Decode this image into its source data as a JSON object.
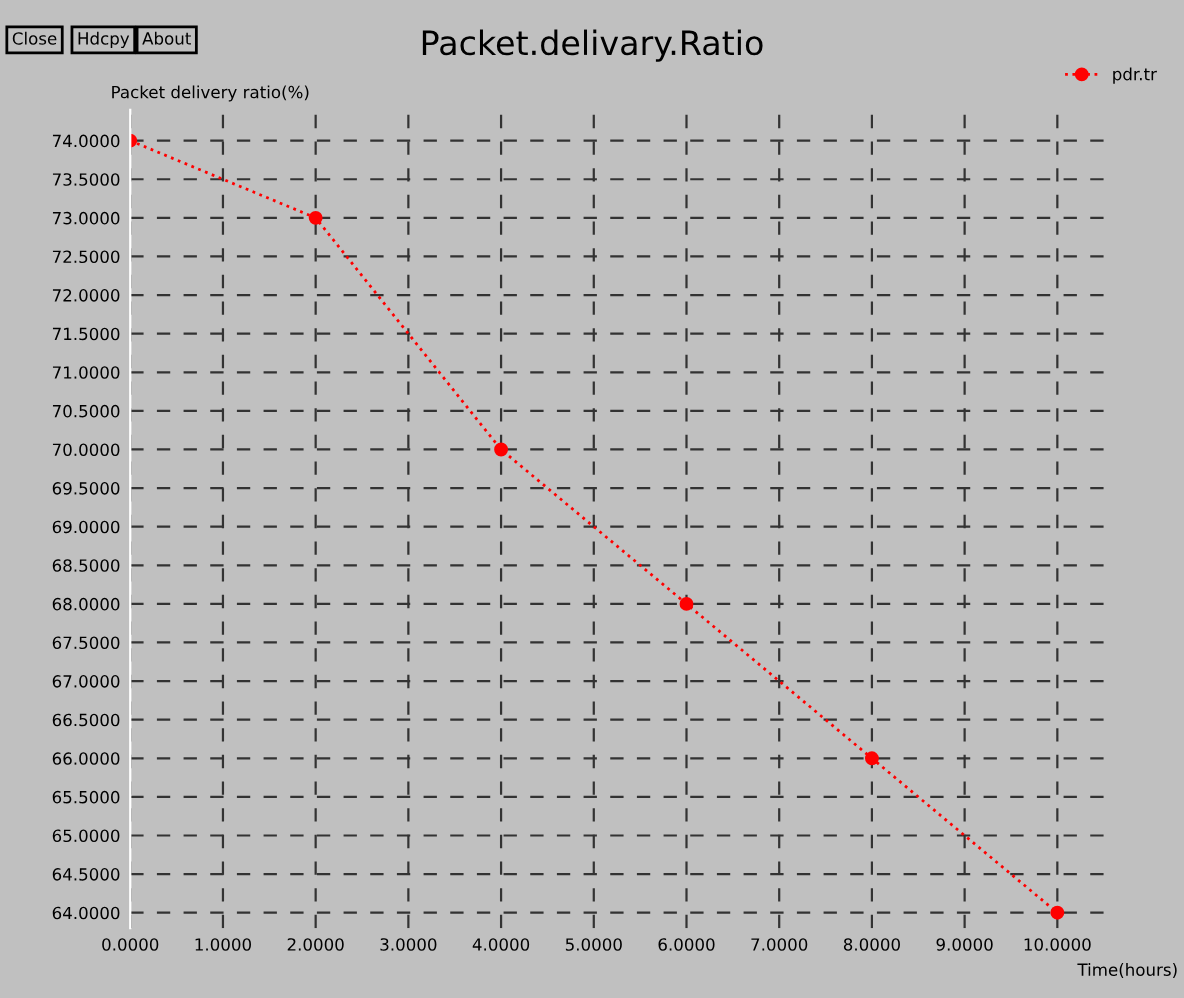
{
  "chart_data": {
    "type": "line",
    "title": "Packet.delivary.Ratio",
    "ylabel": "Packet delivery ratio(%)",
    "xlabel": "Time(hours)",
    "annotations": [
      "Close",
      "Hdcpy",
      "About"
    ],
    "x": [
      0,
      2,
      4,
      6,
      8,
      10
    ],
    "series": [
      {
        "name": "pdr.tr",
        "color": "#ff0000",
        "values": [
          74,
          73,
          70,
          68,
          66,
          64
        ]
      }
    ],
    "xlim": [
      0,
      10.6
    ],
    "ylim": [
      63.8,
      74.4
    ],
    "xticks": [
      {
        "value": 0,
        "label": "0.0000"
      },
      {
        "value": 1,
        "label": "1.0000"
      },
      {
        "value": 2,
        "label": "2.0000"
      },
      {
        "value": 3,
        "label": "3.0000"
      },
      {
        "value": 4,
        "label": "4.0000"
      },
      {
        "value": 5,
        "label": "5.0000"
      },
      {
        "value": 6,
        "label": "6.0000"
      },
      {
        "value": 7,
        "label": "7.0000"
      },
      {
        "value": 8,
        "label": "8.0000"
      },
      {
        "value": 9,
        "label": "9.0000"
      },
      {
        "value": 10,
        "label": "10.0000"
      }
    ],
    "yticks": [
      {
        "value": 64,
        "label": "64.0000"
      },
      {
        "value": 64.5,
        "label": "64.5000"
      },
      {
        "value": 65,
        "label": "65.0000"
      },
      {
        "value": 65.5,
        "label": "65.5000"
      },
      {
        "value": 66,
        "label": "66.0000"
      },
      {
        "value": 66.5,
        "label": "66.5000"
      },
      {
        "value": 67,
        "label": "67.0000"
      },
      {
        "value": 67.5,
        "label": "67.5000"
      },
      {
        "value": 68,
        "label": "68.0000"
      },
      {
        "value": 68.5,
        "label": "68.5000"
      },
      {
        "value": 69,
        "label": "69.0000"
      },
      {
        "value": 69.5,
        "label": "69.5000"
      },
      {
        "value": 70,
        "label": "70.0000"
      },
      {
        "value": 70.5,
        "label": "70.5000"
      },
      {
        "value": 71,
        "label": "71.0000"
      },
      {
        "value": 71.5,
        "label": "71.5000"
      },
      {
        "value": 72,
        "label": "72.0000"
      },
      {
        "value": 72.5,
        "label": "72.5000"
      },
      {
        "value": 73,
        "label": "73.0000"
      },
      {
        "value": 73.5,
        "label": "73.5000"
      },
      {
        "value": 74,
        "label": "74.0000"
      }
    ],
    "grid": true,
    "legend": "top right",
    "marker": "circle",
    "line_style": "dotted"
  }
}
